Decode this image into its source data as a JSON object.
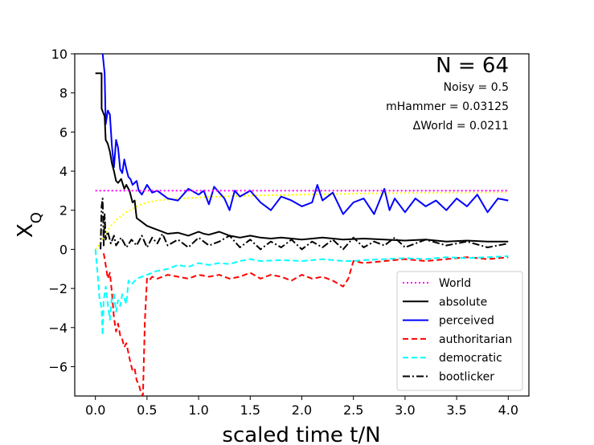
{
  "chart_data": {
    "type": "line",
    "xlabel": "scaled time t/N",
    "ylabel": "X_Q",
    "xlim": [
      -0.2,
      4.2
    ],
    "ylim": [
      -7.5,
      10
    ],
    "xticks": [
      "0.0",
      "0.5",
      "1.0",
      "1.5",
      "2.0",
      "2.5",
      "3.0",
      "3.5",
      "4.0"
    ],
    "yticks": [
      "−6",
      "−4",
      "−2",
      "0",
      "2",
      "4",
      "6",
      "8",
      "10"
    ],
    "annotations": [
      "N = 64",
      "Noisy  = 0.5",
      "mHammer = 0.03125",
      "ΔWorld  = 0.0211"
    ],
    "legend_position": "lower right",
    "series": [
      {
        "name": "World",
        "color": "#ff00ff",
        "style": "dotted",
        "x": [
          0,
          4.0
        ],
        "y": [
          3.0,
          3.0
        ]
      },
      {
        "name": "",
        "color": "#ffff00",
        "style": "dotted",
        "x": [
          0.0,
          0.05,
          0.1,
          0.15,
          0.2,
          0.3,
          0.4,
          0.5,
          0.6,
          0.8,
          1.0,
          1.2,
          1.5,
          2.0,
          2.5,
          3.0,
          3.5,
          4.0
        ],
        "y": [
          0.0,
          0.3,
          0.8,
          1.2,
          1.5,
          1.9,
          2.2,
          2.4,
          2.5,
          2.6,
          2.65,
          2.7,
          2.75,
          2.8,
          2.85,
          2.88,
          2.9,
          2.92
        ]
      },
      {
        "name": "absolute",
        "color": "#000000",
        "style": "solid",
        "x": [
          0.0,
          0.06,
          0.06,
          0.09,
          0.1,
          0.12,
          0.14,
          0.16,
          0.18,
          0.2,
          0.22,
          0.25,
          0.28,
          0.3,
          0.33,
          0.36,
          0.38,
          0.4,
          0.45,
          0.5,
          0.55,
          0.6,
          0.7,
          0.8,
          0.9,
          1.0,
          1.05,
          1.1,
          1.2,
          1.3,
          1.4,
          1.5,
          1.6,
          1.7,
          1.8,
          2.0,
          2.2,
          2.4,
          2.6,
          2.8,
          3.0,
          3.2,
          3.4,
          3.6,
          3.8,
          4.0
        ],
        "y": [
          9.0,
          9.0,
          7.2,
          6.8,
          5.6,
          5.4,
          5.0,
          4.4,
          4.0,
          3.5,
          3.4,
          3.6,
          3.1,
          3.3,
          3.0,
          2.4,
          2.5,
          1.6,
          1.4,
          1.2,
          1.1,
          1.0,
          0.8,
          0.85,
          0.7,
          0.9,
          0.8,
          0.75,
          0.9,
          0.7,
          0.6,
          0.7,
          0.6,
          0.55,
          0.6,
          0.5,
          0.6,
          0.5,
          0.55,
          0.5,
          0.45,
          0.5,
          0.4,
          0.45,
          0.4,
          0.4
        ]
      },
      {
        "name": "perceived",
        "color": "#0000ff",
        "style": "solid",
        "x": [
          0.07,
          0.09,
          0.1,
          0.12,
          0.14,
          0.16,
          0.18,
          0.2,
          0.22,
          0.24,
          0.26,
          0.28,
          0.3,
          0.32,
          0.34,
          0.36,
          0.4,
          0.42,
          0.45,
          0.5,
          0.55,
          0.6,
          0.7,
          0.8,
          0.9,
          1.0,
          1.05,
          1.1,
          1.15,
          1.2,
          1.25,
          1.3,
          1.35,
          1.4,
          1.5,
          1.6,
          1.7,
          1.8,
          1.9,
          2.0,
          2.1,
          2.15,
          2.2,
          2.3,
          2.4,
          2.5,
          2.6,
          2.7,
          2.8,
          2.85,
          2.9,
          3.0,
          3.1,
          3.2,
          3.3,
          3.4,
          3.5,
          3.6,
          3.7,
          3.8,
          3.9,
          4.0
        ],
        "y": [
          10.0,
          9.0,
          6.4,
          7.1,
          6.9,
          5.3,
          4.2,
          5.6,
          5.2,
          4.1,
          3.9,
          4.6,
          4.1,
          3.7,
          3.6,
          3.3,
          3.5,
          3.0,
          2.8,
          3.3,
          2.9,
          3.0,
          2.6,
          2.5,
          3.1,
          2.8,
          3.0,
          2.3,
          3.2,
          2.9,
          2.6,
          2.0,
          3.0,
          2.7,
          3.0,
          2.4,
          2.0,
          2.7,
          2.5,
          2.2,
          2.4,
          3.3,
          2.5,
          2.9,
          1.8,
          2.4,
          2.6,
          1.8,
          3.1,
          2.0,
          2.6,
          1.9,
          2.6,
          2.2,
          2.5,
          2.0,
          2.6,
          2.2,
          2.8,
          1.9,
          2.6,
          2.5
        ]
      },
      {
        "name": "authoritarian",
        "color": "#ff0000",
        "style": "dashed",
        "x": [
          0.08,
          0.1,
          0.12,
          0.14,
          0.16,
          0.18,
          0.2,
          0.22,
          0.24,
          0.26,
          0.28,
          0.3,
          0.32,
          0.34,
          0.36,
          0.38,
          0.4,
          0.42,
          0.44,
          0.46,
          0.48,
          0.5,
          0.52,
          0.55,
          0.6,
          0.7,
          0.8,
          0.9,
          1.0,
          1.1,
          1.2,
          1.3,
          1.4,
          1.5,
          1.6,
          1.7,
          1.8,
          1.9,
          2.0,
          2.1,
          2.2,
          2.3,
          2.4,
          2.45,
          2.5,
          2.6,
          2.8,
          3.0,
          3.2,
          3.4,
          3.6,
          3.8,
          4.0
        ],
        "y": [
          -0.2,
          -0.8,
          -1.5,
          -1.2,
          -2.2,
          -3.5,
          -4.2,
          -3.8,
          -4.4,
          -4.6,
          -5.0,
          -4.8,
          -5.3,
          -5.8,
          -6.2,
          -6.1,
          -6.7,
          -6.9,
          -7.3,
          -7.5,
          -3.6,
          -1.5,
          -1.6,
          -1.4,
          -1.5,
          -1.3,
          -1.4,
          -1.5,
          -1.3,
          -1.4,
          -1.3,
          -1.5,
          -1.4,
          -1.2,
          -1.5,
          -1.3,
          -1.4,
          -1.6,
          -1.3,
          -1.5,
          -1.4,
          -1.6,
          -1.9,
          -1.5,
          -0.6,
          -0.7,
          -0.6,
          -0.5,
          -0.6,
          -0.5,
          -0.4,
          -0.5,
          -0.4
        ]
      },
      {
        "name": "democratic",
        "color": "#00ffff",
        "style": "dashed",
        "x": [
          0.0,
          0.02,
          0.04,
          0.06,
          0.07,
          0.08,
          0.1,
          0.12,
          0.14,
          0.16,
          0.18,
          0.2,
          0.22,
          0.24,
          0.26,
          0.28,
          0.3,
          0.32,
          0.35,
          0.4,
          0.45,
          0.5,
          0.6,
          0.7,
          0.8,
          0.9,
          1.0,
          1.1,
          1.2,
          1.3,
          1.4,
          1.5,
          1.6,
          1.8,
          2.0,
          2.2,
          2.4,
          2.5,
          2.6,
          2.8,
          3.0,
          3.2,
          3.4,
          3.6,
          3.8,
          4.0
        ],
        "y": [
          0.0,
          -1.2,
          -2.5,
          -3.0,
          -4.4,
          -2.6,
          -1.9,
          -2.8,
          -3.6,
          -2.4,
          -2.3,
          -3.2,
          -2.6,
          -2.9,
          -2.3,
          -2.5,
          -2.8,
          -1.6,
          -1.8,
          -1.5,
          -1.4,
          -1.3,
          -1.1,
          -1.0,
          -0.8,
          -0.9,
          -0.7,
          -0.8,
          -0.7,
          -0.75,
          -0.6,
          -0.5,
          -0.6,
          -0.55,
          -0.6,
          -0.5,
          -0.6,
          -0.6,
          -0.55,
          -0.5,
          -0.45,
          -0.5,
          -0.4,
          -0.45,
          -0.4,
          -0.35
        ]
      },
      {
        "name": "bootlicker",
        "color": "#000000",
        "style": "dashdot",
        "x": [
          0.05,
          0.06,
          0.07,
          0.08,
          0.09,
          0.1,
          0.12,
          0.15,
          0.18,
          0.2,
          0.25,
          0.3,
          0.35,
          0.4,
          0.45,
          0.5,
          0.55,
          0.6,
          0.65,
          0.7,
          0.8,
          0.9,
          1.0,
          1.1,
          1.2,
          1.3,
          1.4,
          1.5,
          1.6,
          1.7,
          1.8,
          1.9,
          2.0,
          2.1,
          2.2,
          2.3,
          2.4,
          2.5,
          2.6,
          2.7,
          2.8,
          2.9,
          3.0,
          3.2,
          3.4,
          3.6,
          3.8,
          4.0
        ],
        "y": [
          0.0,
          2.2,
          2.6,
          0.2,
          1.8,
          0.5,
          0.9,
          0.3,
          0.7,
          0.2,
          0.6,
          0.1,
          0.5,
          0.2,
          0.7,
          0.1,
          0.6,
          0.3,
          0.8,
          0.2,
          0.5,
          0.1,
          0.6,
          0.2,
          0.4,
          0.7,
          0.1,
          0.5,
          0.0,
          0.4,
          0.1,
          0.5,
          0.0,
          0.4,
          0.1,
          0.5,
          0.0,
          0.6,
          0.1,
          0.4,
          0.2,
          0.6,
          0.1,
          0.5,
          0.2,
          0.4,
          0.1,
          0.3
        ]
      }
    ]
  }
}
